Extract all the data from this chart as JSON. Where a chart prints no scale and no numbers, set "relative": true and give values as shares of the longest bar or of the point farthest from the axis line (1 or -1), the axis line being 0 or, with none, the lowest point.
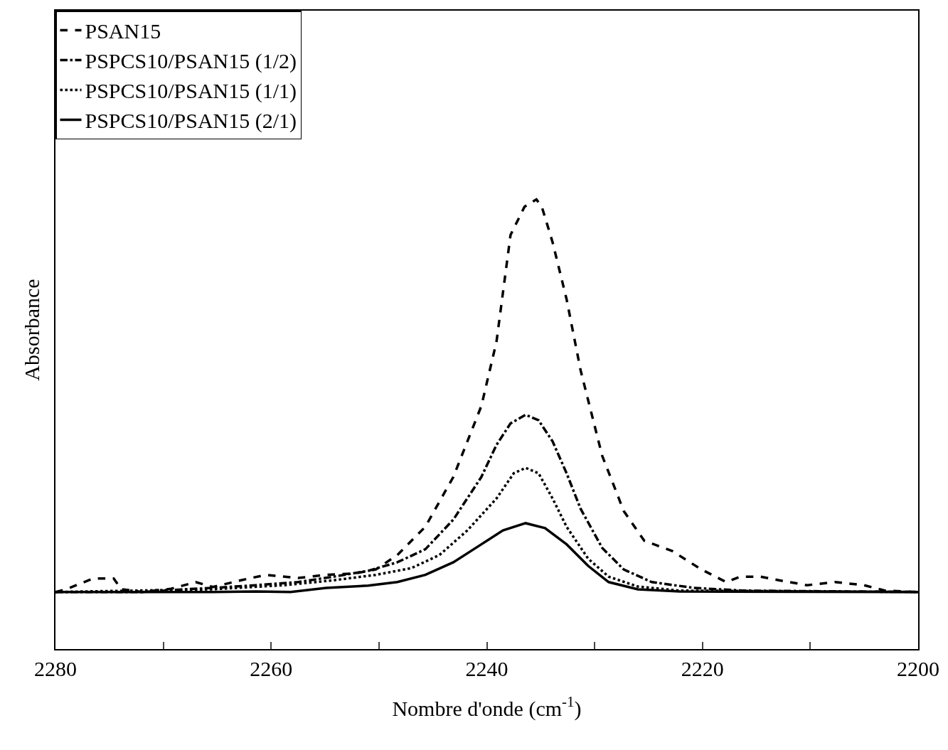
{
  "chart_data": {
    "type": "line",
    "relative": true,
    "xlabel": "Nombre d'onde (cm$^{-1}$)",
    "ylabel": "Absorbance",
    "xlim": [
      2280,
      2200
    ],
    "xticks": [
      2280,
      {
        "value": 2270,
        "label": null
      },
      2260,
      {
        "value": 2250,
        "label": null
      },
      2240,
      {
        "value": 2230,
        "label": null
      },
      2220,
      {
        "value": 2210,
        "label": null
      },
      2200
    ],
    "grid": false,
    "legend": "top left",
    "marker": "none",
    "series": [
      {
        "name": "PSAN15",
        "color": "#000000",
        "line_style": "dashed",
        "x": [
          2280,
          2279.0,
          2276.5,
          2274.6,
          2273.9,
          2271.9,
          2269.3,
          2267.0,
          2265.4,
          2262.8,
          2260.5,
          2257.5,
          2254.9,
          2252.3,
          2250.3,
          2248.3,
          2245.7,
          2243.1,
          2240.5,
          2239.1,
          2237.8,
          2236.5,
          2235.4,
          2234.9,
          2233.9,
          2232.6,
          2231.3,
          2229.3,
          2227.3,
          2225.4,
          2222.8,
          2220.1,
          2217.8,
          2216.5,
          2214.6,
          2212.9,
          2210.3,
          2207.7,
          2205.0,
          2203.1,
          2200
        ],
        "values": [
          0.127,
          0.133,
          0.157,
          0.157,
          0.133,
          0.127,
          0.134,
          0.149,
          0.138,
          0.153,
          0.165,
          0.158,
          0.165,
          0.168,
          0.177,
          0.209,
          0.272,
          0.383,
          0.541,
          0.684,
          0.921,
          0.984,
          1.0,
          0.984,
          0.905,
          0.778,
          0.62,
          0.43,
          0.307,
          0.241,
          0.218,
          0.177,
          0.149,
          0.161,
          0.161,
          0.153,
          0.142,
          0.149,
          0.142,
          0.13,
          0.127
        ]
      },
      {
        "name": "PSPCS10/PSAN15 (1/2)",
        "color": "#000000",
        "line_style": "dashdot",
        "x": [
          2280,
          2271.9,
          2268.0,
          2265.4,
          2261.4,
          2257.5,
          2254.2,
          2251.0,
          2248.3,
          2245.7,
          2243.1,
          2240.5,
          2239.1,
          2237.8,
          2236.4,
          2235.2,
          2233.9,
          2232.6,
          2231.3,
          2229.3,
          2227.3,
          2224.7,
          2220.8,
          2216.2,
          2200
        ],
        "values": [
          0.127,
          0.127,
          0.133,
          0.136,
          0.142,
          0.149,
          0.161,
          0.174,
          0.193,
          0.222,
          0.288,
          0.383,
          0.454,
          0.502,
          0.521,
          0.509,
          0.462,
          0.391,
          0.312,
          0.225,
          0.177,
          0.149,
          0.136,
          0.13,
          0.127
        ]
      },
      {
        "name": "PSPCS10/PSAN15 (1/1)",
        "color": "#000000",
        "line_style": "dotted",
        "x": [
          2280,
          2265.4,
          2258.8,
          2254.2,
          2250.3,
          2247.0,
          2244.4,
          2241.8,
          2239.1,
          2237.5,
          2236.4,
          2235.2,
          2233.9,
          2232.6,
          2230.6,
          2228.7,
          2226.0,
          2222.1,
          2200
        ],
        "values": [
          0.127,
          0.133,
          0.142,
          0.153,
          0.165,
          0.18,
          0.209,
          0.264,
          0.335,
          0.391,
          0.403,
          0.391,
          0.335,
          0.272,
          0.201,
          0.161,
          0.139,
          0.13,
          0.127
        ]
      },
      {
        "name": "PSPCS10/PSAN15 (2/1)",
        "color": "#000000",
        "line_style": "solid",
        "x": [
          2280,
          2265.4,
          2261.4,
          2258.2,
          2254.9,
          2251.0,
          2248.3,
          2245.7,
          2243.1,
          2240.5,
          2238.5,
          2236.4,
          2234.6,
          2232.6,
          2230.6,
          2228.7,
          2226.0,
          2222.1,
          2200
        ],
        "values": [
          0.127,
          0.127,
          0.128,
          0.127,
          0.136,
          0.141,
          0.149,
          0.165,
          0.193,
          0.233,
          0.264,
          0.28,
          0.269,
          0.233,
          0.185,
          0.149,
          0.133,
          0.128,
          0.127
        ]
      }
    ]
  }
}
